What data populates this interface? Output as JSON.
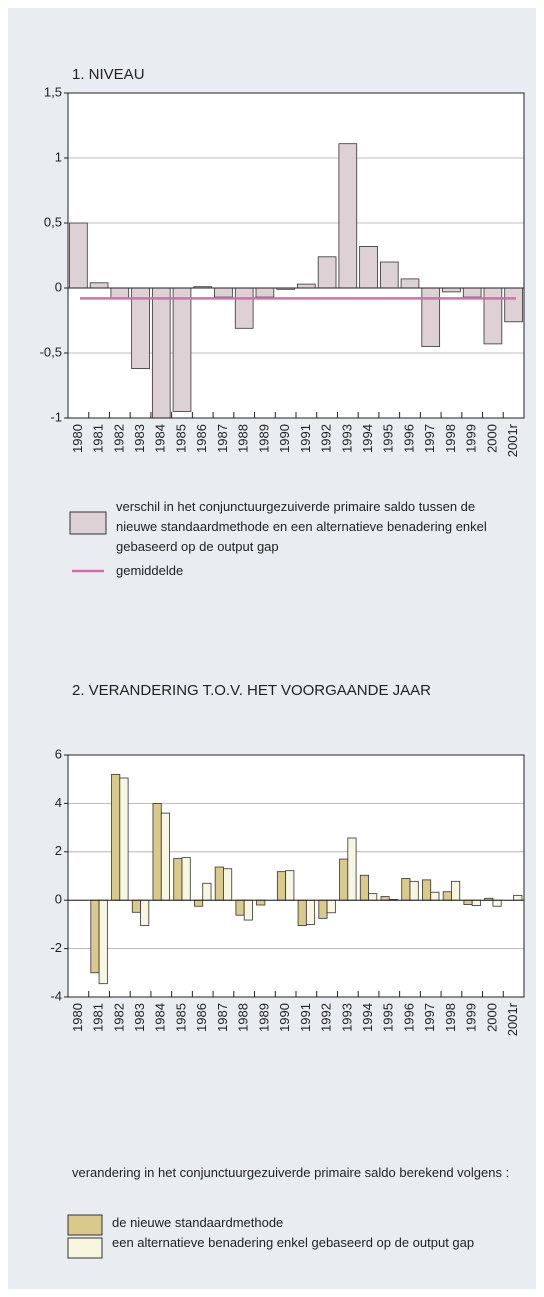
{
  "chart_data": [
    {
      "type": "bar",
      "title": "1. NIVEAU",
      "categories": [
        "1980",
        "1981",
        "1982",
        "1983",
        "1984",
        "1985",
        "1986",
        "1987",
        "1988",
        "1989",
        "1990",
        "1991",
        "1992",
        "1993",
        "1994",
        "1995",
        "1996",
        "1997",
        "1998",
        "1999",
        "2000",
        "2001r"
      ],
      "series": [
        {
          "name": "verschil in het conjunctuurgezuiverde primaire saldo tussen de nieuwe standaardmethode en een alternatieve benadering enkel gebaseerd op de output gap",
          "color": "#ddd1d5",
          "values": [
            0.5,
            0.04,
            -0.08,
            -0.62,
            -1.0,
            -0.95,
            0.01,
            -0.07,
            -0.31,
            -0.07,
            -0.01,
            0.03,
            0.24,
            1.11,
            0.32,
            0.2,
            0.07,
            -0.45,
            -0.03,
            -0.07,
            -0.43,
            -0.26
          ]
        }
      ],
      "mean_line": {
        "name": "gemiddelde",
        "color": "#d36fa8",
        "value": -0.08
      },
      "ylim": [
        -1,
        1.5
      ],
      "yticks": [
        -1,
        {
          "value": -0.5,
          "label": "-0,5"
        },
        0,
        {
          "value": 0.5,
          "label": "0,5"
        },
        1,
        {
          "value": 1.5,
          "label": "1,5"
        }
      ],
      "grid": true
    },
    {
      "type": "bar",
      "title": "2. VERANDERING T.O.V. HET VOORGAANDE JAAR",
      "legend_title": "verandering in het conjunctuurgezuiverde primaire saldo berekend volgens :",
      "categories": [
        "1980",
        "1981",
        "1982",
        "1983",
        "1984",
        "1985",
        "1986",
        "1987",
        "1988",
        "1989",
        "1990",
        "1991",
        "1992",
        "1993",
        "1994",
        "1995",
        "1996",
        "1997",
        "1998",
        "1999",
        "2000",
        "2001r"
      ],
      "series": [
        {
          "name": "de nieuwe standaardmethode",
          "color": "#d9c98a",
          "values": [
            null,
            -3.0,
            5.2,
            -0.5,
            4.0,
            1.72,
            -0.25,
            1.37,
            -0.62,
            -0.2,
            1.18,
            -1.05,
            -0.75,
            1.7,
            1.03,
            0.15,
            0.9,
            0.84,
            0.35,
            -0.18,
            0.08,
            0.0
          ]
        },
        {
          "name": "een alternatieve benadering enkel gebaseerd op de output gap",
          "color": "#f7f6e0",
          "values": [
            null,
            -3.45,
            5.05,
            -1.05,
            3.6,
            1.76,
            0.7,
            1.3,
            -0.82,
            0.0,
            1.22,
            -1.0,
            -0.52,
            2.57,
            0.27,
            0.03,
            0.78,
            0.33,
            0.78,
            -0.22,
            -0.25,
            0.2
          ]
        }
      ],
      "ylim": [
        -4,
        6
      ],
      "yticks": [
        -4,
        -2,
        0,
        2,
        4,
        6
      ],
      "grid": true
    }
  ]
}
